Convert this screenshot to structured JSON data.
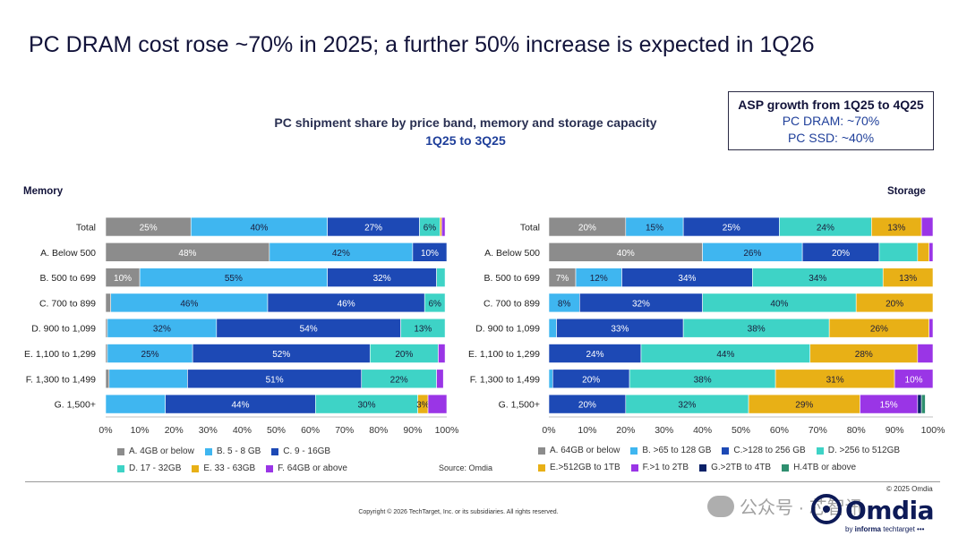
{
  "title": "PC DRAM cost rose ~70% in 2025; a further 50% increase is expected in 1Q26",
  "subtitle_line1": "PC shipment share by price band, memory and storage capacity",
  "subtitle_line2": "1Q25 to 3Q25",
  "asp_box": {
    "heading": "ASP growth from 1Q25 to 4Q25",
    "line1": "PC DRAM: ~70%",
    "line2": "PC SSD: ~40%"
  },
  "source": "Source: Omdia",
  "copyright": "Copyright © 2026 TechTarget, Inc. or its subsidiaries. All rights reserved.",
  "omdia_copyright": "© 2025 Omdia",
  "logo_text": "Omdia",
  "logo_sub_prefix": "by ",
  "logo_sub_bold": "informa",
  "logo_sub_suffix": " techtarget •••",
  "watermark_text": "公众号 · 芯智讯",
  "chart_data": [
    {
      "type": "bar",
      "orientation": "horizontal",
      "stacked": true,
      "panel_label": "Memory",
      "categories": [
        "Total",
        "A. Below 500",
        "B. 500 to 699",
        "C. 700 to 899",
        "D. 900 to 1,099",
        "E. 1,100 to 1,299",
        "F. 1,300 to 1,499",
        "G. 1,500+"
      ],
      "xlim": [
        0,
        100
      ],
      "ticks": [
        "0%",
        "10%",
        "20%",
        "30%",
        "40%",
        "50%",
        "60%",
        "70%",
        "80%",
        "90%",
        "100%"
      ],
      "legend_rows": [
        [
          0,
          1,
          2
        ],
        [
          3,
          4,
          5
        ]
      ],
      "series": [
        {
          "name": "A. 4GB or below",
          "color": "#8c8c8c",
          "values": [
            25,
            48,
            10,
            1.5,
            0.5,
            0.5,
            1,
            0
          ],
          "labels": [
            "25%",
            "48%",
            "10%",
            "",
            "",
            "",
            "",
            ""
          ]
        },
        {
          "name": "B. 5 - 8 GB",
          "color": "#3fb6f0",
          "values": [
            40,
            42,
            55,
            46,
            32,
            25,
            23,
            17.5
          ],
          "labels": [
            "40%",
            "42%",
            "55%",
            "46%",
            "32%",
            "25%",
            "",
            ""
          ]
        },
        {
          "name": "C. 9 - 16GB",
          "color": "#1d49b5",
          "values": [
            27,
            10,
            32,
            46,
            54,
            52,
            51,
            44
          ],
          "labels": [
            "27%",
            "10%",
            "32%",
            "46%",
            "54%",
            "52%",
            "51%",
            "44%"
          ]
        },
        {
          "name": "D. 17 - 32GB",
          "color": "#3ed3c6",
          "values": [
            6,
            0,
            2.5,
            6,
            13,
            20,
            22,
            30
          ],
          "labels": [
            "6%",
            "",
            "",
            "6%",
            "13%",
            "20%",
            "22%",
            "30%"
          ]
        },
        {
          "name": "E. 33 - 63GB",
          "color": "#e8b016",
          "values": [
            0.5,
            0,
            0,
            0,
            0,
            0,
            0,
            3
          ],
          "labels": [
            "",
            "",
            "",
            "",
            "",
            "",
            "",
            "3%"
          ]
        },
        {
          "name": "F. 64GB or above",
          "color": "#9a35e6",
          "values": [
            1,
            0,
            0,
            0,
            0,
            2,
            2,
            5.5
          ],
          "labels": [
            "",
            "",
            "",
            "",
            "",
            "",
            "",
            ""
          ]
        }
      ]
    },
    {
      "type": "bar",
      "orientation": "horizontal",
      "stacked": true,
      "panel_label": "Storage",
      "categories": [
        "Total",
        "A. Below 500",
        "B. 500 to 699",
        "C. 700 to 899",
        "D. 900 to 1,099",
        "E. 1,100 to 1,299",
        "F. 1,300 to 1,499",
        "G. 1,500+"
      ],
      "xlim": [
        0,
        100
      ],
      "ticks": [
        "0%",
        "10%",
        "20%",
        "30%",
        "40%",
        "50%",
        "60%",
        "70%",
        "80%",
        "90%",
        "100%"
      ],
      "legend_rows": [
        [
          0,
          1,
          2,
          3
        ],
        [
          4,
          5,
          6,
          7
        ]
      ],
      "series": [
        {
          "name": "A. 64GB or below",
          "color": "#8c8c8c",
          "values": [
            20,
            40,
            7,
            0,
            0,
            0,
            0,
            0
          ],
          "labels": [
            "20%",
            "40%",
            "7%",
            "",
            "",
            "",
            "",
            ""
          ]
        },
        {
          "name": "B. >65 to 128 GB",
          "color": "#3fb6f0",
          "values": [
            15,
            26,
            12,
            8,
            2,
            0,
            1,
            0
          ],
          "labels": [
            "15%",
            "26%",
            "12%",
            "8%",
            "",
            "",
            "",
            ""
          ]
        },
        {
          "name": "C.>128 to 256 GB",
          "color": "#1d49b5",
          "values": [
            25,
            20,
            34,
            32,
            33,
            24,
            20,
            20
          ],
          "labels": [
            "25%",
            "20%",
            "34%",
            "32%",
            "33%",
            "24%",
            "20%",
            "20%"
          ]
        },
        {
          "name": "D. >256 to 512GB",
          "color": "#3ed3c6",
          "values": [
            24,
            10,
            34,
            40,
            38,
            44,
            38,
            32
          ],
          "labels": [
            "24%",
            "",
            "34%",
            "40%",
            "38%",
            "44%",
            "38%",
            "32%"
          ]
        },
        {
          "name": "E.>512GB to 1TB",
          "color": "#e8b016",
          "values": [
            13,
            3,
            13,
            20,
            26,
            28,
            31,
            29
          ],
          "labels": [
            "13%",
            "",
            "13%",
            "20%",
            "26%",
            "28%",
            "31%",
            "29%"
          ]
        },
        {
          "name": "F.>1 to 2TB",
          "color": "#9a35e6",
          "values": [
            3,
            1,
            0,
            0,
            1,
            4,
            10,
            15
          ],
          "labels": [
            "",
            "",
            "",
            "",
            "",
            "",
            "10%",
            "15%"
          ]
        },
        {
          "name": "G.>2TB to 4TB",
          "color": "#0b2168",
          "values": [
            0,
            0,
            0,
            0,
            0,
            0,
            0,
            1
          ],
          "labels": [
            "",
            "",
            "",
            "",
            "",
            "",
            "",
            ""
          ]
        },
        {
          "name": "H.4TB or above",
          "color": "#2f8f6f",
          "values": [
            0,
            0,
            0,
            0,
            0,
            0,
            0,
            1
          ],
          "labels": [
            "",
            "",
            "",
            "",
            "",
            "",
            "",
            ""
          ]
        }
      ]
    }
  ]
}
